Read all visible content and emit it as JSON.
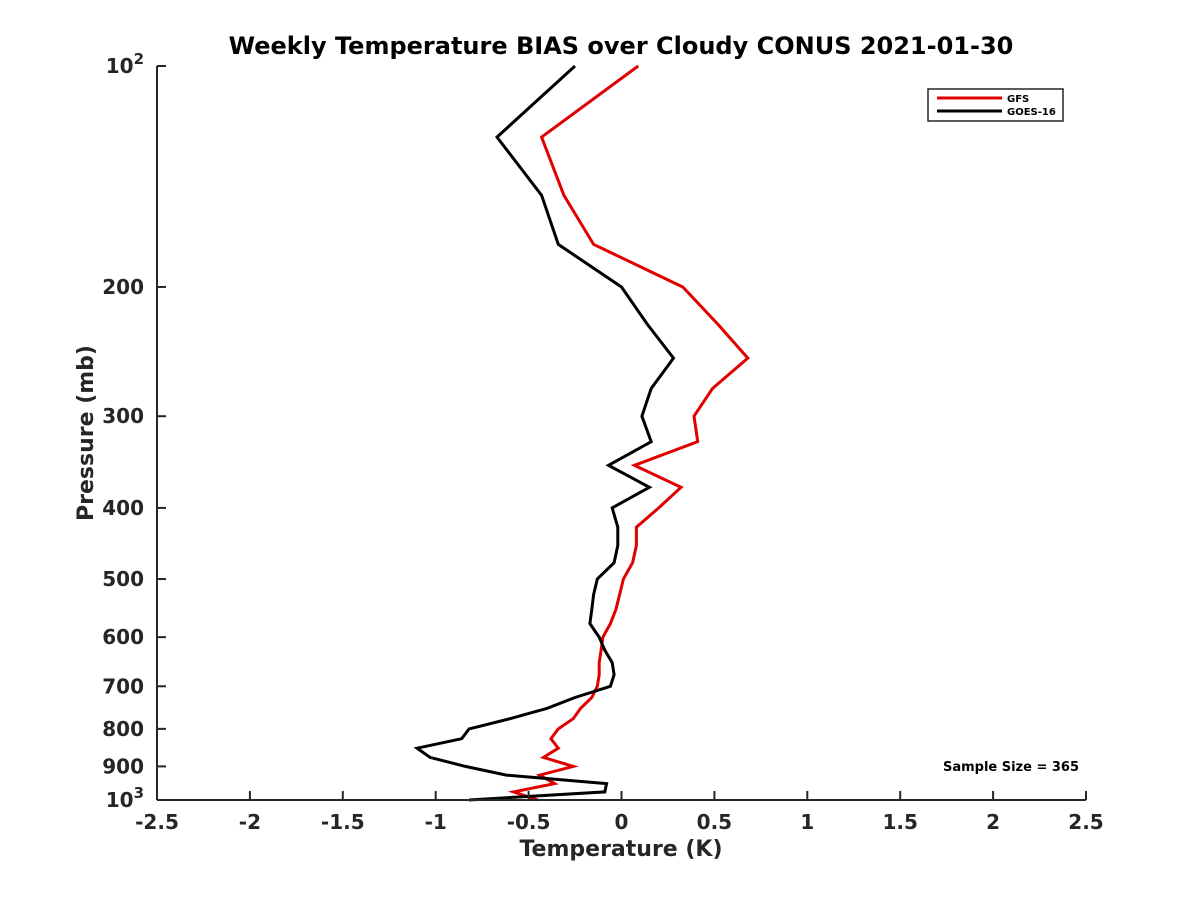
{
  "chart_data": {
    "type": "line",
    "title": "Weekly Temperature BIAS over Cloudy CONUS 2021-01-30",
    "xlabel": "Temperature (K)",
    "ylabel": "Pressure (mb)",
    "xlim": [
      -2.5,
      2.5
    ],
    "ylim": [
      100,
      1000
    ],
    "y_scale": "log",
    "y_reversed": true,
    "grid": false,
    "legend_position": "top-right",
    "x_ticks": [
      {
        "value": -2.5,
        "label": "-2.5"
      },
      {
        "value": -2,
        "label": "-2"
      },
      {
        "value": -1.5,
        "label": "-1.5"
      },
      {
        "value": -1,
        "label": "-1"
      },
      {
        "value": -0.5,
        "label": "-0.5"
      },
      {
        "value": 0,
        "label": "0"
      },
      {
        "value": 0.5,
        "label": "0.5"
      },
      {
        "value": 1,
        "label": "1"
      },
      {
        "value": 1.5,
        "label": "1.5"
      },
      {
        "value": 2,
        "label": "2"
      },
      {
        "value": 2.5,
        "label": "2.5"
      }
    ],
    "y_ticks": [
      {
        "value": 100,
        "label": "10",
        "exp": "2"
      },
      {
        "value": 200,
        "label": "200"
      },
      {
        "value": 300,
        "label": "300"
      },
      {
        "value": 400,
        "label": "400"
      },
      {
        "value": 500,
        "label": "500"
      },
      {
        "value": 600,
        "label": "600"
      },
      {
        "value": 700,
        "label": "700"
      },
      {
        "value": 800,
        "label": "800"
      },
      {
        "value": 900,
        "label": "900"
      },
      {
        "value": 1000,
        "label": "10",
        "exp": "3"
      }
    ],
    "annotation": "Sample Size = 365",
    "series": [
      {
        "name": "GFS",
        "color": "#e00000",
        "points": [
          [
            0.09,
            100
          ],
          [
            -0.43,
            125
          ],
          [
            -0.31,
            150
          ],
          [
            -0.15,
            175
          ],
          [
            0.33,
            200
          ],
          [
            0.52,
            225
          ],
          [
            0.68,
            250
          ],
          [
            0.49,
            275
          ],
          [
            0.39,
            300
          ],
          [
            0.41,
            325
          ],
          [
            0.07,
            350
          ],
          [
            0.32,
            375
          ],
          [
            0.2,
            400
          ],
          [
            0.08,
            425
          ],
          [
            0.08,
            450
          ],
          [
            0.06,
            475
          ],
          [
            0.01,
            500
          ],
          [
            -0.01,
            525
          ],
          [
            -0.03,
            550
          ],
          [
            -0.06,
            575
          ],
          [
            -0.1,
            600
          ],
          [
            -0.11,
            625
          ],
          [
            -0.12,
            650
          ],
          [
            -0.12,
            675
          ],
          [
            -0.13,
            700
          ],
          [
            -0.16,
            725
          ],
          [
            -0.22,
            750
          ],
          [
            -0.26,
            775
          ],
          [
            -0.34,
            800
          ],
          [
            -0.38,
            825
          ],
          [
            -0.34,
            850
          ],
          [
            -0.42,
            875
          ],
          [
            -0.26,
            900
          ],
          [
            -0.44,
            925
          ],
          [
            -0.36,
            950
          ],
          [
            -0.58,
            975
          ],
          [
            -0.45,
            1000
          ]
        ]
      },
      {
        "name": "GOES-16",
        "color": "#000000",
        "points": [
          [
            -0.25,
            100
          ],
          [
            -0.67,
            125
          ],
          [
            -0.43,
            150
          ],
          [
            -0.34,
            175
          ],
          [
            0.0,
            200
          ],
          [
            0.14,
            225
          ],
          [
            0.28,
            250
          ],
          [
            0.16,
            275
          ],
          [
            0.11,
            300
          ],
          [
            0.16,
            325
          ],
          [
            -0.07,
            350
          ],
          [
            0.15,
            375
          ],
          [
            -0.05,
            400
          ],
          [
            -0.02,
            425
          ],
          [
            -0.02,
            450
          ],
          [
            -0.04,
            475
          ],
          [
            -0.13,
            500
          ],
          [
            -0.15,
            525
          ],
          [
            -0.16,
            550
          ],
          [
            -0.17,
            575
          ],
          [
            -0.12,
            600
          ],
          [
            -0.09,
            625
          ],
          [
            -0.05,
            650
          ],
          [
            -0.04,
            675
          ],
          [
            -0.06,
            700
          ],
          [
            -0.25,
            725
          ],
          [
            -0.4,
            750
          ],
          [
            -0.6,
            775
          ],
          [
            -0.82,
            800
          ],
          [
            -0.86,
            825
          ],
          [
            -1.1,
            850
          ],
          [
            -1.03,
            875
          ],
          [
            -0.84,
            900
          ],
          [
            -0.62,
            925
          ],
          [
            -0.08,
            950
          ],
          [
            -0.09,
            975
          ],
          [
            -0.82,
            1000
          ]
        ]
      }
    ]
  }
}
